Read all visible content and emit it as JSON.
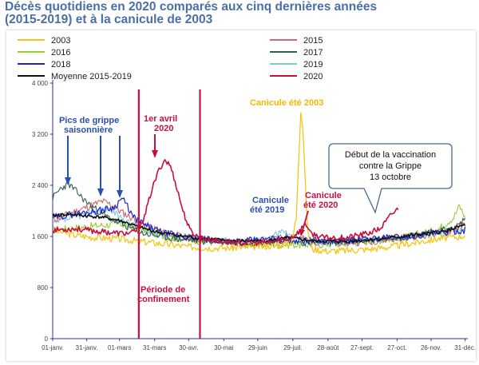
{
  "page": {
    "title_line1": "Décès quotidiens en 2020 comparés aux cinq dernières années",
    "title_line2": "(2015-2019) et à la canicule de 2003"
  },
  "chart_data": {
    "type": "line",
    "title": "Décès quotidiens en 2020 comparés aux cinq dernières années (2015-2019) et à la canicule de 2003",
    "xlabel": "",
    "ylabel": "",
    "ylim": [
      0,
      4000
    ],
    "yticks": [
      0,
      800,
      1600,
      2400,
      3200,
      4000
    ],
    "ytick_labels": [
      "0",
      "800",
      "1 600",
      "2 400",
      "3 200",
      "4 000"
    ],
    "xticks": [
      1,
      31,
      60,
      91,
      121,
      152,
      182,
      213,
      244,
      274,
      305,
      335,
      365
    ],
    "xtick_labels": [
      "01-janv.",
      "31-janv.",
      "01-mars",
      "31-mars",
      "30-avr.",
      "30-mai",
      "29-juin",
      "29-juil.",
      "28-août",
      "27-sept.",
      "27-oct.",
      "26-nov.",
      "31-déc."
    ],
    "xlim": [
      1,
      366
    ],
    "grid": false,
    "legend_position": "top",
    "series": [
      {
        "name": "2003",
        "color": "#f5c518",
        "width": 1.3,
        "points": [
          [
            1,
            1700
          ],
          [
            20,
            1620
          ],
          [
            40,
            1580
          ],
          [
            60,
            1560
          ],
          [
            80,
            1520
          ],
          [
            100,
            1480
          ],
          [
            120,
            1440
          ],
          [
            140,
            1420
          ],
          [
            160,
            1420
          ],
          [
            180,
            1440
          ],
          [
            200,
            1460
          ],
          [
            212,
            1500
          ],
          [
            216,
            1900
          ],
          [
            218,
            2800
          ],
          [
            220,
            3580
          ],
          [
            222,
            3250
          ],
          [
            224,
            2400
          ],
          [
            226,
            1700
          ],
          [
            230,
            1400
          ],
          [
            245,
            1370
          ],
          [
            260,
            1380
          ],
          [
            280,
            1400
          ],
          [
            300,
            1440
          ],
          [
            320,
            1500
          ],
          [
            340,
            1560
          ],
          [
            360,
            1600
          ],
          [
            365,
            1620
          ]
        ],
        "noise": 55,
        "seed": 3
      },
      {
        "name": "2015",
        "color": "#c96b6b",
        "width": 1.1,
        "points": [
          [
            1,
            1850
          ],
          [
            15,
            1950
          ],
          [
            30,
            2050
          ],
          [
            45,
            2150
          ],
          [
            52,
            2100
          ],
          [
            60,
            2000
          ],
          [
            80,
            1800
          ],
          [
            100,
            1650
          ],
          [
            120,
            1580
          ],
          [
            150,
            1520
          ],
          [
            180,
            1500
          ],
          [
            200,
            1560
          ],
          [
            210,
            1620
          ],
          [
            230,
            1520
          ],
          [
            260,
            1500
          ],
          [
            290,
            1540
          ],
          [
            320,
            1600
          ],
          [
            350,
            1680
          ],
          [
            365,
            1780
          ]
        ],
        "noise": 60,
        "seed": 11
      },
      {
        "name": "2016",
        "color": "#9acd32",
        "width": 1.1,
        "points": [
          [
            1,
            1700
          ],
          [
            30,
            1750
          ],
          [
            60,
            1800
          ],
          [
            80,
            1700
          ],
          [
            100,
            1600
          ],
          [
            130,
            1530
          ],
          [
            160,
            1480
          ],
          [
            190,
            1470
          ],
          [
            220,
            1470
          ],
          [
            250,
            1480
          ],
          [
            280,
            1520
          ],
          [
            310,
            1580
          ],
          [
            340,
            1700
          ],
          [
            355,
            1900
          ],
          [
            360,
            2080
          ],
          [
            365,
            1900
          ]
        ],
        "noise": 60,
        "seed": 17
      },
      {
        "name": "2017",
        "color": "#2f5f4f",
        "width": 1.1,
        "points": [
          [
            1,
            2200
          ],
          [
            8,
            2350
          ],
          [
            15,
            2420
          ],
          [
            22,
            2300
          ],
          [
            30,
            2150
          ],
          [
            45,
            1950
          ],
          [
            60,
            1800
          ],
          [
            80,
            1650
          ],
          [
            110,
            1560
          ],
          [
            140,
            1520
          ],
          [
            170,
            1500
          ],
          [
            200,
            1520
          ],
          [
            230,
            1500
          ],
          [
            260,
            1520
          ],
          [
            290,
            1560
          ],
          [
            320,
            1600
          ],
          [
            350,
            1720
          ],
          [
            365,
            1850
          ]
        ],
        "noise": 55,
        "seed": 23
      },
      {
        "name": "2018",
        "color": "#2020d0",
        "width": 1.2,
        "points": [
          [
            1,
            1900
          ],
          [
            20,
            1950
          ],
          [
            40,
            2000
          ],
          [
            55,
            2050
          ],
          [
            62,
            2200
          ],
          [
            66,
            2100
          ],
          [
            72,
            1900
          ],
          [
            85,
            1750
          ],
          [
            100,
            1650
          ],
          [
            130,
            1560
          ],
          [
            160,
            1520
          ],
          [
            180,
            1540
          ],
          [
            200,
            1560
          ],
          [
            220,
            1540
          ],
          [
            250,
            1520
          ],
          [
            280,
            1560
          ],
          [
            310,
            1600
          ],
          [
            340,
            1650
          ],
          [
            365,
            1700
          ]
        ],
        "noise": 55,
        "seed": 29
      },
      {
        "name": "2019",
        "color": "#7ec8e3",
        "width": 1.1,
        "points": [
          [
            1,
            1800
          ],
          [
            20,
            1900
          ],
          [
            40,
            2000
          ],
          [
            50,
            2050
          ],
          [
            60,
            1900
          ],
          [
            80,
            1700
          ],
          [
            100,
            1620
          ],
          [
            130,
            1560
          ],
          [
            160,
            1520
          ],
          [
            185,
            1540
          ],
          [
            205,
            1700
          ],
          [
            210,
            1600
          ],
          [
            230,
            1520
          ],
          [
            260,
            1520
          ],
          [
            290,
            1560
          ],
          [
            320,
            1600
          ],
          [
            350,
            1650
          ],
          [
            365,
            1720
          ]
        ],
        "noise": 55,
        "seed": 37
      },
      {
        "name": "Moyenne 2015-2019",
        "color": "#111111",
        "width": 1.6,
        "points": [
          [
            1,
            1920
          ],
          [
            15,
            1950
          ],
          [
            30,
            1920
          ],
          [
            45,
            1900
          ],
          [
            60,
            1850
          ],
          [
            75,
            1760
          ],
          [
            90,
            1680
          ],
          [
            110,
            1620
          ],
          [
            130,
            1570
          ],
          [
            160,
            1530
          ],
          [
            190,
            1530
          ],
          [
            210,
            1580
          ],
          [
            230,
            1530
          ],
          [
            260,
            1520
          ],
          [
            290,
            1560
          ],
          [
            320,
            1620
          ],
          [
            345,
            1670
          ],
          [
            365,
            1780
          ]
        ],
        "noise": 25,
        "seed": 41
      },
      {
        "name": "2020",
        "color": "#c8103e",
        "width": 1.6,
        "points": [
          [
            1,
            1700
          ],
          [
            20,
            1720
          ],
          [
            40,
            1680
          ],
          [
            60,
            1650
          ],
          [
            70,
            1650
          ],
          [
            75,
            1700
          ],
          [
            82,
            1900
          ],
          [
            88,
            2300
          ],
          [
            95,
            2650
          ],
          [
            100,
            2800
          ],
          [
            105,
            2700
          ],
          [
            110,
            2400
          ],
          [
            116,
            2000
          ],
          [
            122,
            1700
          ],
          [
            130,
            1580
          ],
          [
            150,
            1520
          ],
          [
            170,
            1500
          ],
          [
            190,
            1500
          ],
          [
            210,
            1560
          ],
          [
            220,
            1700
          ],
          [
            224,
            1820
          ],
          [
            228,
            1650
          ],
          [
            240,
            1580
          ],
          [
            260,
            1580
          ],
          [
            280,
            1650
          ],
          [
            290,
            1720
          ],
          [
            296,
            1850
          ],
          [
            300,
            1950
          ],
          [
            304,
            2000
          ],
          [
            306,
            2050
          ]
        ],
        "noise": 45,
        "seed": 53
      }
    ],
    "annotations": [
      {
        "text": "Pics de grippe saisonnière",
        "color": "#2b4fb0"
      },
      {
        "text": "1er avril 2020",
        "color": "#c8103e"
      },
      {
        "text": "Canicule été 2003",
        "color": "#f5b800"
      },
      {
        "text": "Canicule été 2019",
        "color": "#2b4fb0"
      },
      {
        "text": "Canicule été 2020",
        "color": "#c8103e"
      },
      {
        "text": "Période de confinement",
        "color": "#c8103e"
      },
      {
        "text": "Début de la vaccination contre la Grippe 13 octobre",
        "color": "#111111"
      }
    ],
    "markers": [
      {
        "label": "confinement-start",
        "day": 77,
        "color": "#c8103e"
      },
      {
        "label": "confinement-end",
        "day": 131,
        "color": "#c8103e"
      }
    ]
  },
  "labels": {
    "grippe_line1": "Pics de grippe",
    "grippe_line2": "saisonnière",
    "avril_line1": "1er avril",
    "avril_line2": "2020",
    "canicule2003": "Canicule été 2003",
    "canicule2019_line1": "Canicule",
    "canicule2019_line2": "été 2019",
    "canicule2020_line1": "Canicule",
    "canicule2020_line2": "été 2020",
    "confinement_line1": "Période de",
    "confinement_line2": "confinement",
    "vaccin_line1": "Début de la vaccination",
    "vaccin_line2": "contre la Grippe",
    "vaccin_line3": "13 octobre"
  },
  "colors": {
    "title": "#4a6fa5",
    "axis": "#3030a0",
    "confinement": "#c8103e"
  }
}
